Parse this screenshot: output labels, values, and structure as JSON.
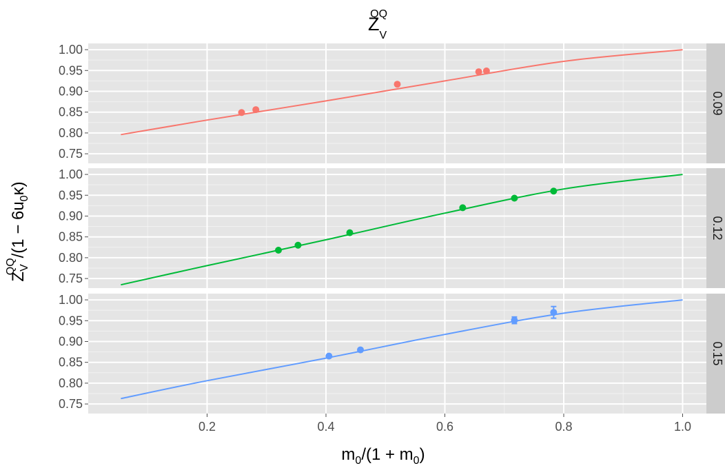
{
  "chart_data": {
    "type": "scatter",
    "title": {
      "main": "Z",
      "sub": "V",
      "sup": "QQ"
    },
    "xlabel": {
      "m1": "m",
      "s1": "0",
      "mid": "/(1 + m",
      "s2": "0",
      "end": ")"
    },
    "ylabel": {
      "z": "Z",
      "zsub": "V",
      "zsup": "QQ",
      "mid": "/(1 − 6u",
      "usub": "0",
      "end": "κ)"
    },
    "x_ticks": [
      "0.2",
      "0.4",
      "0.6",
      "0.8",
      "1.0"
    ],
    "x_tick_values": [
      0.2,
      0.4,
      0.6,
      0.8,
      1.0
    ],
    "y_ticks": [
      "0.75",
      "0.80",
      "0.85",
      "0.90",
      "0.95",
      "1.00"
    ],
    "y_tick_values": [
      0.75,
      0.8,
      0.85,
      0.9,
      0.95,
      1.0
    ],
    "xlim": [
      0.0,
      1.04
    ],
    "ylim": [
      0.727,
      1.015
    ],
    "grid": true,
    "panels": [
      {
        "strip_label": "0.09",
        "color": "#F8766D",
        "points": [
          {
            "x": 0.258,
            "y": 0.849
          },
          {
            "x": 0.282,
            "y": 0.856
          },
          {
            "x": 0.52,
            "y": 0.917
          },
          {
            "x": 0.657,
            "y": 0.947
          },
          {
            "x": 0.67,
            "y": 0.949
          }
        ],
        "fit": {
          "x": [
            0.055,
            0.2,
            0.4,
            0.6,
            0.8,
            1.0
          ],
          "y": [
            0.796,
            0.831,
            0.877,
            0.925,
            0.972,
            1.0
          ]
        }
      },
      {
        "strip_label": "0.12",
        "color": "#00BA38",
        "points": [
          {
            "x": 0.32,
            "y": 0.818
          },
          {
            "x": 0.353,
            "y": 0.83
          },
          {
            "x": 0.44,
            "y": 0.86
          },
          {
            "x": 0.63,
            "y": 0.92
          },
          {
            "x": 0.717,
            "y": 0.943
          },
          {
            "x": 0.783,
            "y": 0.96
          }
        ],
        "fit": {
          "x": [
            0.055,
            0.2,
            0.4,
            0.6,
            0.8,
            1.0
          ],
          "y": [
            0.735,
            0.781,
            0.843,
            0.907,
            0.965,
            1.0
          ]
        }
      },
      {
        "strip_label": "0.15",
        "color": "#619CFF",
        "points": [
          {
            "x": 0.405,
            "y": 0.865
          },
          {
            "x": 0.458,
            "y": 0.88
          },
          {
            "x": 0.717,
            "y": 0.951,
            "err": 0.008
          },
          {
            "x": 0.783,
            "y": 0.97,
            "err": 0.014
          }
        ],
        "fit": {
          "x": [
            0.055,
            0.2,
            0.4,
            0.6,
            0.8,
            1.0
          ],
          "y": [
            0.763,
            0.806,
            0.86,
            0.917,
            0.968,
            1.0
          ]
        }
      }
    ]
  }
}
